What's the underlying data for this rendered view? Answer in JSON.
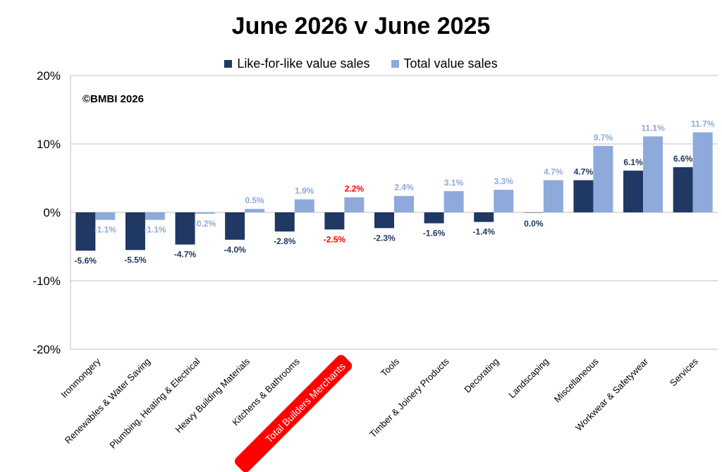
{
  "chart_data": {
    "type": "bar",
    "title": "June 2026 v June 2025",
    "copyright": "©BMBI 2026",
    "categories": [
      "Ironmongery",
      "Renewables & Water Saving",
      "Plumbing, Heating & Electrical",
      "Heavy Building Materials",
      "Kitchens & Bathrooms",
      "Total Builders Merchants",
      "Tools",
      "Timber & Joinery Products",
      "Decorating",
      "Landscaping",
      "Miscellaneous",
      "Workwear & Safetywear",
      "Services"
    ],
    "highlight_category": "Total Builders Merchants",
    "highlight_color": "#ff0000",
    "series": [
      {
        "name": "Like-for-like value sales",
        "color": "#1f3864",
        "values": [
          -5.6,
          -5.5,
          -4.7,
          -4.0,
          -2.8,
          -2.5,
          -2.3,
          -1.6,
          -1.4,
          0.0,
          4.7,
          6.1,
          6.6
        ],
        "labels": [
          "-5.6%",
          "-5.5%",
          "-4.7%",
          "-4.0%",
          "-2.8%",
          "-2.5%",
          "-2.3%",
          "-1.6%",
          "-1.4%",
          "0.0%",
          "4.7%",
          "6.1%",
          "6.6%"
        ]
      },
      {
        "name": "Total value sales",
        "color": "#8eaadb",
        "values": [
          -1.1,
          -1.1,
          -0.2,
          0.5,
          1.9,
          2.2,
          2.4,
          3.1,
          3.3,
          4.7,
          9.7,
          11.1,
          11.7
        ],
        "labels": [
          "-1.1%",
          "-1.1%",
          "-0.2%",
          "0.5%",
          "1.9%",
          "2.2%",
          "2.4%",
          "3.1%",
          "3.3%",
          "4.7%",
          "9.7%",
          "11.1%",
          "11.7%"
        ]
      }
    ],
    "ylim": [
      -20,
      20
    ],
    "yticks": [
      20,
      10,
      0,
      -10,
      -20
    ],
    "ytick_labels": [
      "20%",
      "10%",
      "0%",
      "-10%",
      "-20%"
    ],
    "grid": true,
    "legend_position": "top-center"
  }
}
